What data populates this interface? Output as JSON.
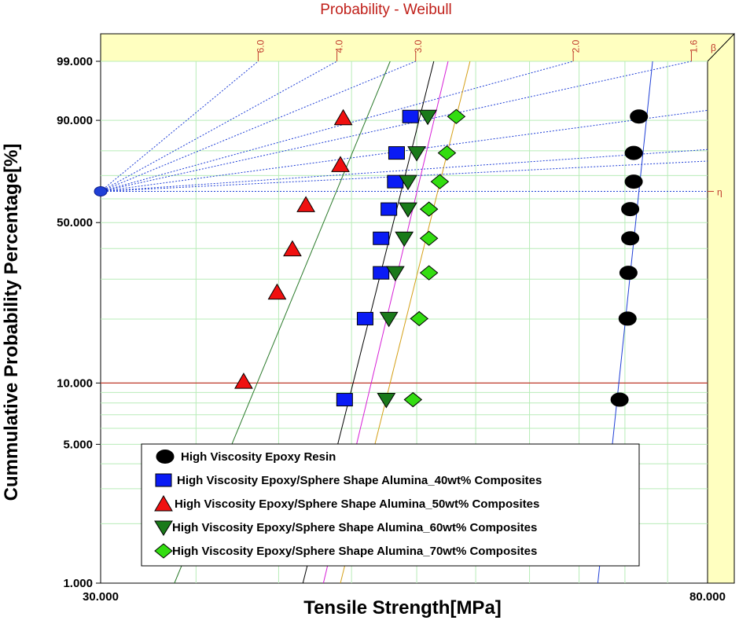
{
  "chart_data": {
    "type": "scatter",
    "title": "Probability - Weibull",
    "xlabel": "Tensile Strength[MPa]",
    "ylabel": "Cummulative Probability Percentage[%]",
    "x_scale": "log",
    "y_scale": "weibull",
    "xlim": [
      30,
      80
    ],
    "ylim": [
      1,
      99
    ],
    "x_tick_labels": [
      "30.000",
      "80.000"
    ],
    "y_ticks": [
      {
        "value": 99,
        "label": "99.000"
      },
      {
        "value": 90,
        "label": "90.000"
      },
      {
        "value": 50,
        "label": "50.000"
      },
      {
        "value": 10,
        "label": "10.000"
      },
      {
        "value": 5,
        "label": "5.000"
      },
      {
        "value": 1,
        "label": "1.000"
      }
    ],
    "beta_scale": {
      "symbol": "β",
      "eta_symbol": "η",
      "ticks": [
        {
          "value": 6.0,
          "label": "6.0"
        },
        {
          "value": 4.0,
          "label": "4.0"
        },
        {
          "value": 3.0,
          "label": "3.0"
        },
        {
          "value": 2.0,
          "label": "2.0"
        },
        {
          "value": 1.6,
          "label": "1.6"
        }
      ]
    },
    "reference_line": {
      "y": 10,
      "color": "#c0392b"
    },
    "series": [
      {
        "name": "High Viscosity Epoxy Resin",
        "marker": "circle",
        "color": "#000000",
        "fit_color": "#1f3fd6",
        "points": [
          [
            69.4,
            8.3
          ],
          [
            70.3,
            20.1
          ],
          [
            70.4,
            31.9
          ],
          [
            70.6,
            43.8
          ],
          [
            70.6,
            55.6
          ],
          [
            71.0,
            67.4
          ],
          [
            71.0,
            79.2
          ],
          [
            71.6,
            91.0
          ]
        ],
        "fit": [
          [
            67.0,
            1
          ],
          [
            73.2,
            99
          ]
        ]
      },
      {
        "name": "High Viscosity Epoxy/Sphere Shape Alumina_40wt% Composites",
        "marker": "square",
        "color": "#0a1bf5",
        "fit_color": "#000000",
        "points": [
          [
            44.5,
            8.3
          ],
          [
            46.0,
            20.1
          ],
          [
            47.2,
            31.9
          ],
          [
            47.2,
            43.8
          ],
          [
            47.8,
            55.6
          ],
          [
            48.3,
            67.4
          ],
          [
            48.4,
            79.2
          ],
          [
            49.5,
            91.0
          ]
        ],
        "fit": [
          [
            41.6,
            1
          ],
          [
            51.4,
            99
          ]
        ]
      },
      {
        "name": "High Viscosity Epoxy/Sphere Shape Alumina_50wt% Composites",
        "marker": "triangle-up",
        "color": "#f01010",
        "fit_color": "#2b7a2b",
        "points": [
          [
            37.8,
            10.2
          ],
          [
            39.9,
            26.4
          ],
          [
            40.9,
            39.9
          ],
          [
            41.8,
            57.5
          ],
          [
            44.2,
            74.6
          ],
          [
            44.4,
            90.7
          ]
        ],
        "fit": [
          [
            33.8,
            1
          ],
          [
            47.9,
            99
          ]
        ]
      },
      {
        "name": "High Viscosity Epoxy/Sphere Shape Alumina_60wt% Composites",
        "marker": "triangle-down",
        "color": "#1a7a1a",
        "fit_color": "#d61fd6",
        "points": [
          [
            47.6,
            8.3
          ],
          [
            47.8,
            20.1
          ],
          [
            48.3,
            31.9
          ],
          [
            49.0,
            43.8
          ],
          [
            49.3,
            55.6
          ],
          [
            49.3,
            67.4
          ],
          [
            50.0,
            79.2
          ],
          [
            50.9,
            91.0
          ]
        ],
        "fit": [
          [
            43.0,
            1
          ],
          [
            52.6,
            99
          ]
        ]
      },
      {
        "name": "High Viscosity Epoxy/Sphere Shape Alumina_70wt% Composites",
        "marker": "diamond",
        "color": "#33dd11",
        "fit_color": "#d4a017",
        "points": [
          [
            49.7,
            8.3
          ],
          [
            50.2,
            20.1
          ],
          [
            51.0,
            31.9
          ],
          [
            51.0,
            43.8
          ],
          [
            51.0,
            55.6
          ],
          [
            51.9,
            67.4
          ],
          [
            52.5,
            79.2
          ],
          [
            53.3,
            91.0
          ]
        ],
        "fit": [
          [
            44.2,
            1
          ],
          [
            54.5,
            99
          ]
        ]
      }
    ]
  }
}
